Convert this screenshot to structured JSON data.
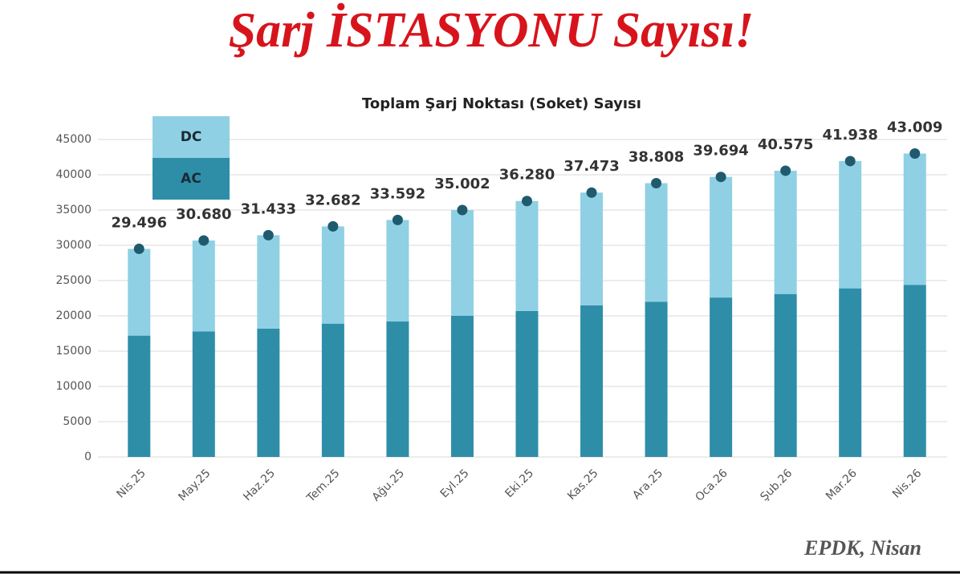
{
  "page_title": "Şarj İSTASYONU Sayısı!",
  "footer": "EPDK, Nisan",
  "chart_data": {
    "type": "stacked-bar",
    "title": "Toplam Şarj Noktası (Soket) Sayısı",
    "categories": [
      "Nis.25",
      "May.25",
      "Haz.25",
      "Tem.25",
      "Ağu.25",
      "Eyl.25",
      "Eki.25",
      "Kas.25",
      "Ara.25",
      "Oca.26",
      "Şub.26",
      "Mar.26",
      "Nis.26"
    ],
    "series": [
      {
        "name": "AC",
        "color": "#2e8ea8",
        "values": [
          17200,
          17800,
          18200,
          18900,
          19200,
          20000,
          20700,
          21500,
          22000,
          22600,
          23100,
          23900,
          24400
        ]
      },
      {
        "name": "DC",
        "color": "#8fd0e4",
        "values": [
          12296,
          12880,
          13233,
          13782,
          14392,
          15002,
          15580,
          15973,
          16808,
          17094,
          17475,
          18038,
          18609
        ]
      }
    ],
    "totals": {
      "color": "#1f5a6e",
      "values": [
        29496,
        30680,
        31433,
        32682,
        33592,
        35002,
        36280,
        37473,
        38808,
        39694,
        40575,
        41938,
        43009
      ],
      "value_labels": [
        "29.496",
        "30.680",
        "31.433",
        "32.682",
        "33.592",
        "35.002",
        "36.280",
        "37.473",
        "38.808",
        "39.694",
        "40.575",
        "41.938",
        "43.009"
      ]
    },
    "ylim": [
      0,
      45000
    ],
    "yticks": [
      0,
      5000,
      10000,
      15000,
      20000,
      25000,
      30000,
      35000,
      40000,
      45000
    ],
    "grid": true
  }
}
